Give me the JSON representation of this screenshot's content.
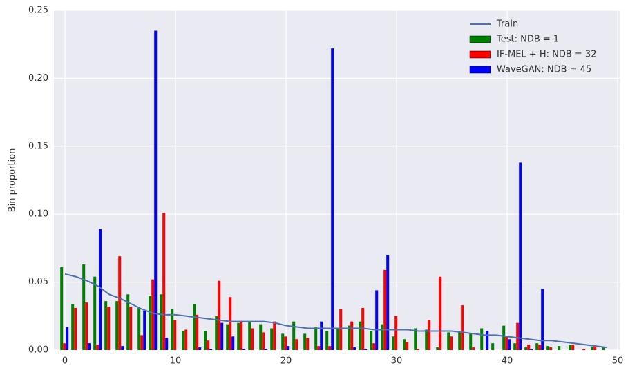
{
  "chart_data": {
    "type": "bar",
    "ylabel": "Bin proportion",
    "x": [
      0,
      1,
      2,
      3,
      4,
      5,
      6,
      7,
      8,
      9,
      10,
      11,
      12,
      13,
      14,
      15,
      16,
      17,
      18,
      19,
      20,
      21,
      22,
      23,
      24,
      25,
      26,
      27,
      28,
      29,
      30,
      31,
      32,
      33,
      34,
      35,
      36,
      37,
      38,
      39,
      40,
      41,
      42,
      43,
      44,
      45,
      46,
      47,
      48,
      49
    ],
    "series": [
      {
        "name": "Train",
        "type": "line",
        "color": "#4c72b0",
        "values": [
          0.056,
          0.054,
          0.051,
          0.047,
          0.041,
          0.038,
          0.034,
          0.03,
          0.027,
          0.026,
          0.026,
          0.025,
          0.024,
          0.023,
          0.022,
          0.021,
          0.021,
          0.021,
          0.021,
          0.02,
          0.018,
          0.017,
          0.016,
          0.016,
          0.016,
          0.016,
          0.016,
          0.016,
          0.015,
          0.015,
          0.015,
          0.015,
          0.014,
          0.014,
          0.014,
          0.014,
          0.013,
          0.012,
          0.011,
          0.011,
          0.01,
          0.009,
          0.008,
          0.007,
          0.007,
          0.006,
          0.005,
          0.004,
          0.003,
          0.002
        ]
      },
      {
        "name": "Test: NDB = 1",
        "type": "bar",
        "color": "#008000",
        "values": [
          0.061,
          0.034,
          0.063,
          0.054,
          0.036,
          0.036,
          0.041,
          0.031,
          0.04,
          0.041,
          0.03,
          0.014,
          0.034,
          0.014,
          0.025,
          0.019,
          0.02,
          0.021,
          0.019,
          0.016,
          0.012,
          0.021,
          0.012,
          0.017,
          0.014,
          0.016,
          0.018,
          0.021,
          0.014,
          0.019,
          0.01,
          0.008,
          0.016,
          0.015,
          0.002,
          0.013,
          0.013,
          0.012,
          0.016,
          0.005,
          0.018,
          0.005,
          0.002,
          0.005,
          0.003,
          0.003,
          0.004,
          0,
          0.002,
          0.002
        ]
      },
      {
        "name": "IF-MEL + H: NDB = 32",
        "type": "bar",
        "color": "#ff0000",
        "values": [
          0.005,
          0.031,
          0.035,
          0.004,
          0.032,
          0.069,
          0.032,
          0.011,
          0.052,
          0.101,
          0.022,
          0.015,
          0.026,
          0.007,
          0.051,
          0.039,
          0.021,
          0.016,
          0.013,
          0.021,
          0.01,
          0.008,
          0.009,
          0.003,
          0.003,
          0.03,
          0.021,
          0.031,
          0.005,
          0.059,
          0.025,
          0.006,
          0.001,
          0.022,
          0.054,
          0.01,
          0.033,
          0.002,
          0,
          0,
          0.01,
          0.02,
          0.004,
          0.004,
          0.002,
          0,
          0.004,
          0.001,
          0.003,
          0
        ]
      },
      {
        "name": "WaveGAN: NDB = 45",
        "type": "bar",
        "color": "#0000ff",
        "values": [
          0.017,
          0,
          0.005,
          0.089,
          0,
          0.003,
          0,
          0.029,
          0.235,
          0.009,
          0,
          0,
          0.002,
          0.001,
          0.02,
          0.01,
          0.001,
          0,
          0.001,
          0,
          0.003,
          0,
          0,
          0.021,
          0.222,
          0,
          0.002,
          0.001,
          0.044,
          0.07,
          0,
          0,
          0,
          0,
          0,
          0,
          0,
          0,
          0.014,
          0,
          0.008,
          0.138,
          0.001,
          0.045,
          0,
          0,
          0,
          0,
          0,
          0
        ]
      }
    ],
    "xlim": [
      -1,
      50.25
    ],
    "ylim": [
      0,
      0.25
    ],
    "xticks": [
      0,
      10,
      20,
      30,
      40,
      50
    ],
    "yticks": [
      {
        "value": 0,
        "label": "0.00"
      },
      {
        "value": 0.05,
        "label": "0.05"
      },
      {
        "value": 0.1,
        "label": "0.10"
      },
      {
        "value": 0.15,
        "label": "0.15"
      },
      {
        "value": 0.2,
        "label": "0.20"
      },
      {
        "value": 0.25,
        "label": "0.25"
      }
    ],
    "grid": true,
    "legend": "upper right"
  }
}
